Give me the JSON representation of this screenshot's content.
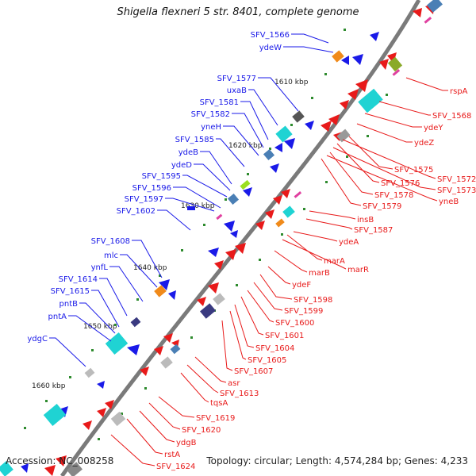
{
  "header": {
    "title": "Shigella flexneri 5 str. 8401, complete genome"
  },
  "footer": {
    "accession": "Accession: NC_008258",
    "summary": "Topology: circular; Length: 4,574,284 bp; Genes: 4,233"
  },
  "ticks": [
    "1610 kbp",
    "1620 kbp",
    "1630 kbp",
    "1640 kbp",
    "1650 kbp",
    "1660 kbp"
  ],
  "colors": {
    "plus_strand": "#1010e0",
    "minus_strand": "#e01010",
    "backbone": "#777777"
  },
  "genes_plus": [
    "SFV_1566",
    "ydeW",
    "SFV_1577",
    "uxaB",
    "SFV_1581",
    "SFV_1582",
    "yneH",
    "SFV_1585",
    "ydeB",
    "ydeD",
    "SFV_1595",
    "SFV_1596",
    "SFV_1597",
    "SFV_1602",
    "SFV_1608",
    "mlc",
    "ynfL",
    "SFV_1614",
    "SFV_1615",
    "pntB",
    "pntA",
    "ydgC"
  ],
  "genes_minus": [
    "rspA",
    "SFV_1568",
    "ydeY",
    "ydeZ",
    "SFV_1575",
    "SFV_1572",
    "SFV_1576",
    "SFV_1573",
    "SFV_1578",
    "yneB",
    "SFV_1579",
    "insB",
    "SFV_1587",
    "ydeA",
    "marA",
    "marR",
    "marB",
    "ydeF",
    "SFV_1598",
    "SFV_1599",
    "SFV_1600",
    "SFV_1601",
    "SFV_1604",
    "SFV_1605",
    "SFV_1607",
    "asr",
    "SFV_1613",
    "tqsA",
    "SFV_1619",
    "SFV_1620",
    "ydgB",
    "rstA",
    "SFV_1624"
  ]
}
